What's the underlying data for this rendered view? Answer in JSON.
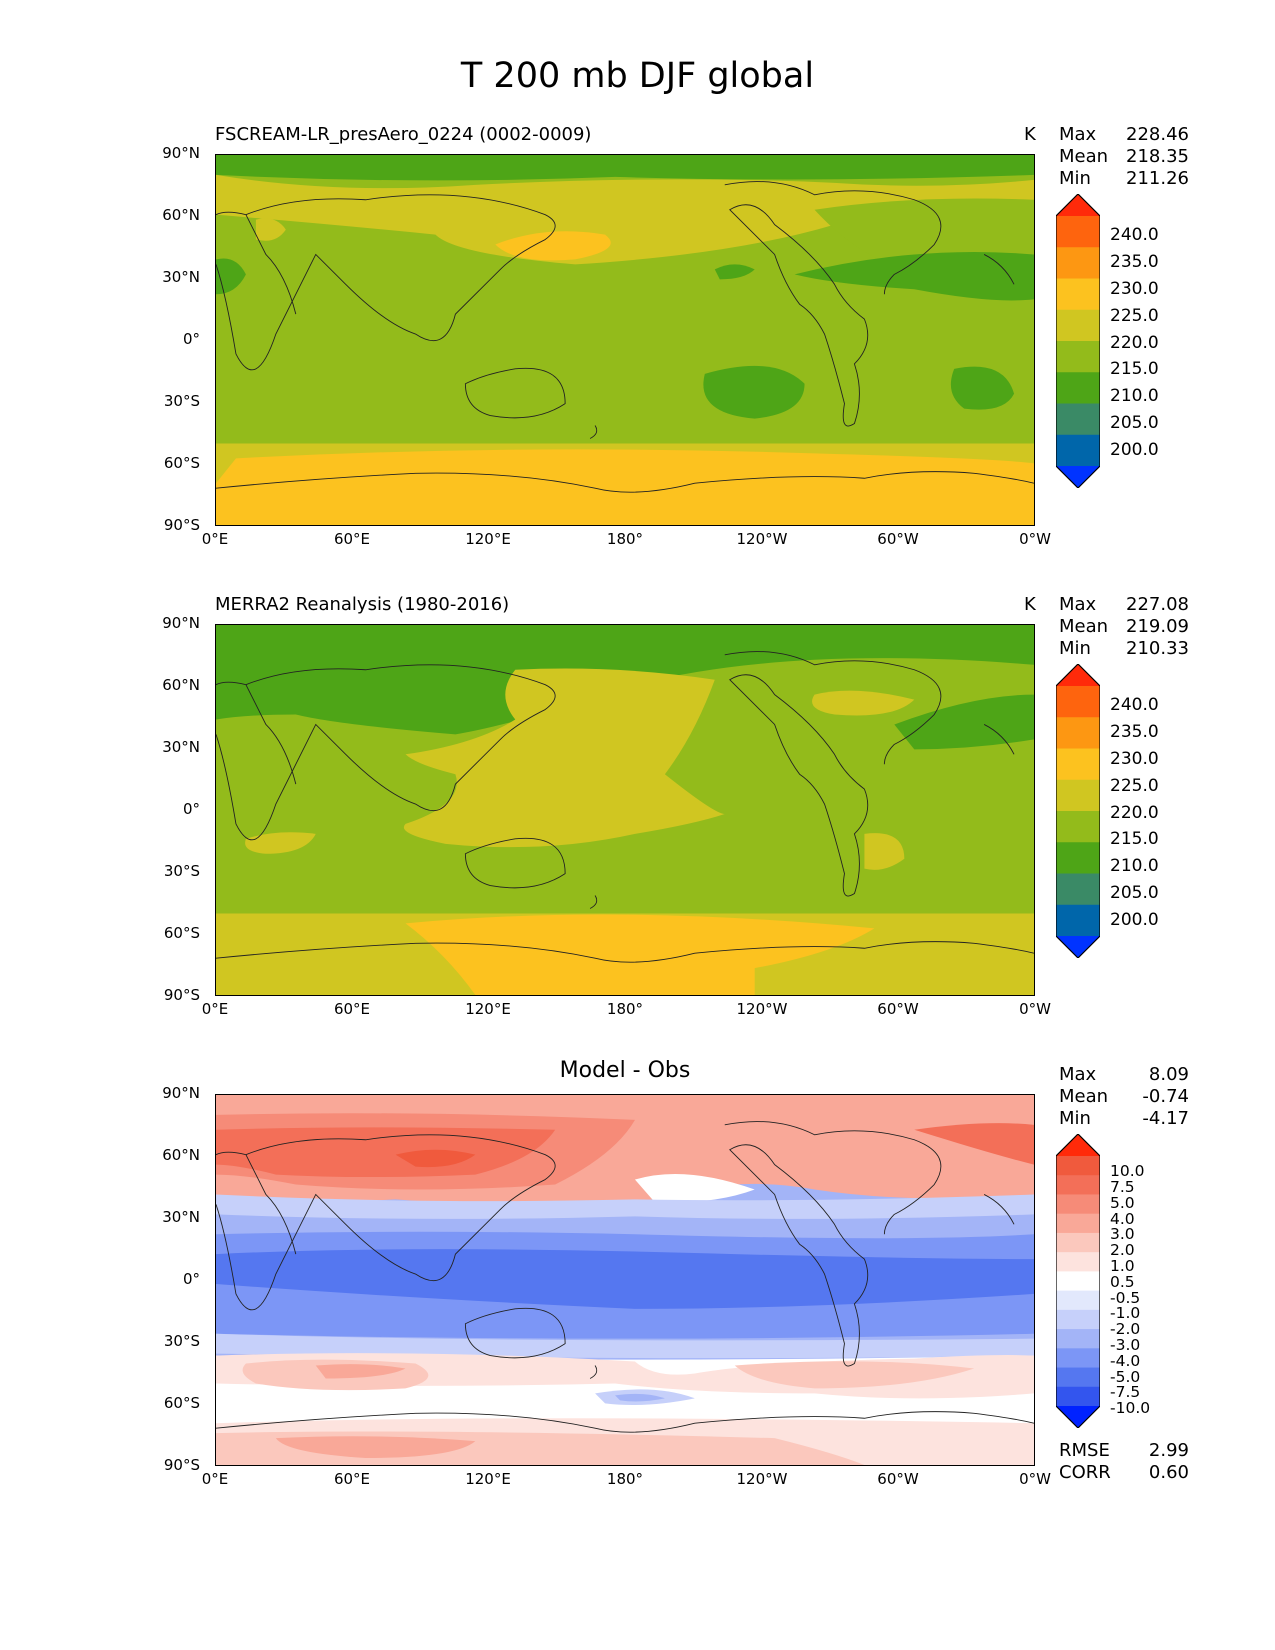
{
  "figure": {
    "title": "T 200 mb DJF global"
  },
  "axes": {
    "y_ticks": [
      "90°N",
      "60°N",
      "30°N",
      "0°",
      "30°S",
      "60°S",
      "90°S"
    ],
    "x_ticks": [
      "0°E",
      "60°E",
      "120°E",
      "180°",
      "120°W",
      "60°W",
      "0°W"
    ]
  },
  "panels": [
    {
      "title": "FSCREAM-LR_presAero_0224 (0002-0009)",
      "units": "K",
      "stats": {
        "max_label": "Max",
        "max": "228.46",
        "mean_label": "Mean",
        "mean": "218.35",
        "min_label": "Min",
        "min": "211.26"
      },
      "colorbar_levels": [
        "240.0",
        "235.0",
        "230.0",
        "225.0",
        "220.0",
        "215.0",
        "210.0",
        "205.0",
        "200.0"
      ]
    },
    {
      "title": "MERRA2 Reanalysis (1980-2016)",
      "units": "K",
      "stats": {
        "max_label": "Max",
        "max": "227.08",
        "mean_label": "Mean",
        "mean": "219.09",
        "min_label": "Min",
        "min": "210.33"
      },
      "colorbar_levels": [
        "240.0",
        "235.0",
        "230.0",
        "225.0",
        "220.0",
        "215.0",
        "210.0",
        "205.0",
        "200.0"
      ]
    },
    {
      "title": "Model - Obs",
      "stats": {
        "max_label": "Max",
        "max": "8.09",
        "mean_label": "Mean",
        "mean": "-0.74",
        "min_label": "Min",
        "min": "-4.17"
      },
      "colorbar_levels": [
        "10.0",
        "7.5",
        "5.0",
        "4.0",
        "3.0",
        "2.0",
        "1.0",
        "0.5",
        "-0.5",
        "-1.0",
        "-2.0",
        "-3.0",
        "-4.0",
        "-5.0",
        "-7.5",
        "-10.0"
      ],
      "metrics": {
        "rmse_label": "RMSE",
        "rmse": "2.99",
        "corr_label": "CORR",
        "corr": "0.60"
      }
    }
  ],
  "colors": {
    "abs_scale": [
      "#0033ff",
      "#0066aa",
      "#3a8a66",
      "#4ea517",
      "#93bb1b",
      "#d0c621",
      "#fcc21f",
      "#fd9712",
      "#fe640e",
      "#ff2a0a"
    ],
    "diff_scale": [
      "#0022ff",
      "#3355ee",
      "#5577f0",
      "#7c96f6",
      "#a3b4f7",
      "#c6d0fa",
      "#e2e8fc",
      "#ffffff",
      "#fde3de",
      "#fbc8bd",
      "#f9a898",
      "#f68b78",
      "#f36f58",
      "#f05a3d",
      "#ff2a0a"
    ]
  }
}
